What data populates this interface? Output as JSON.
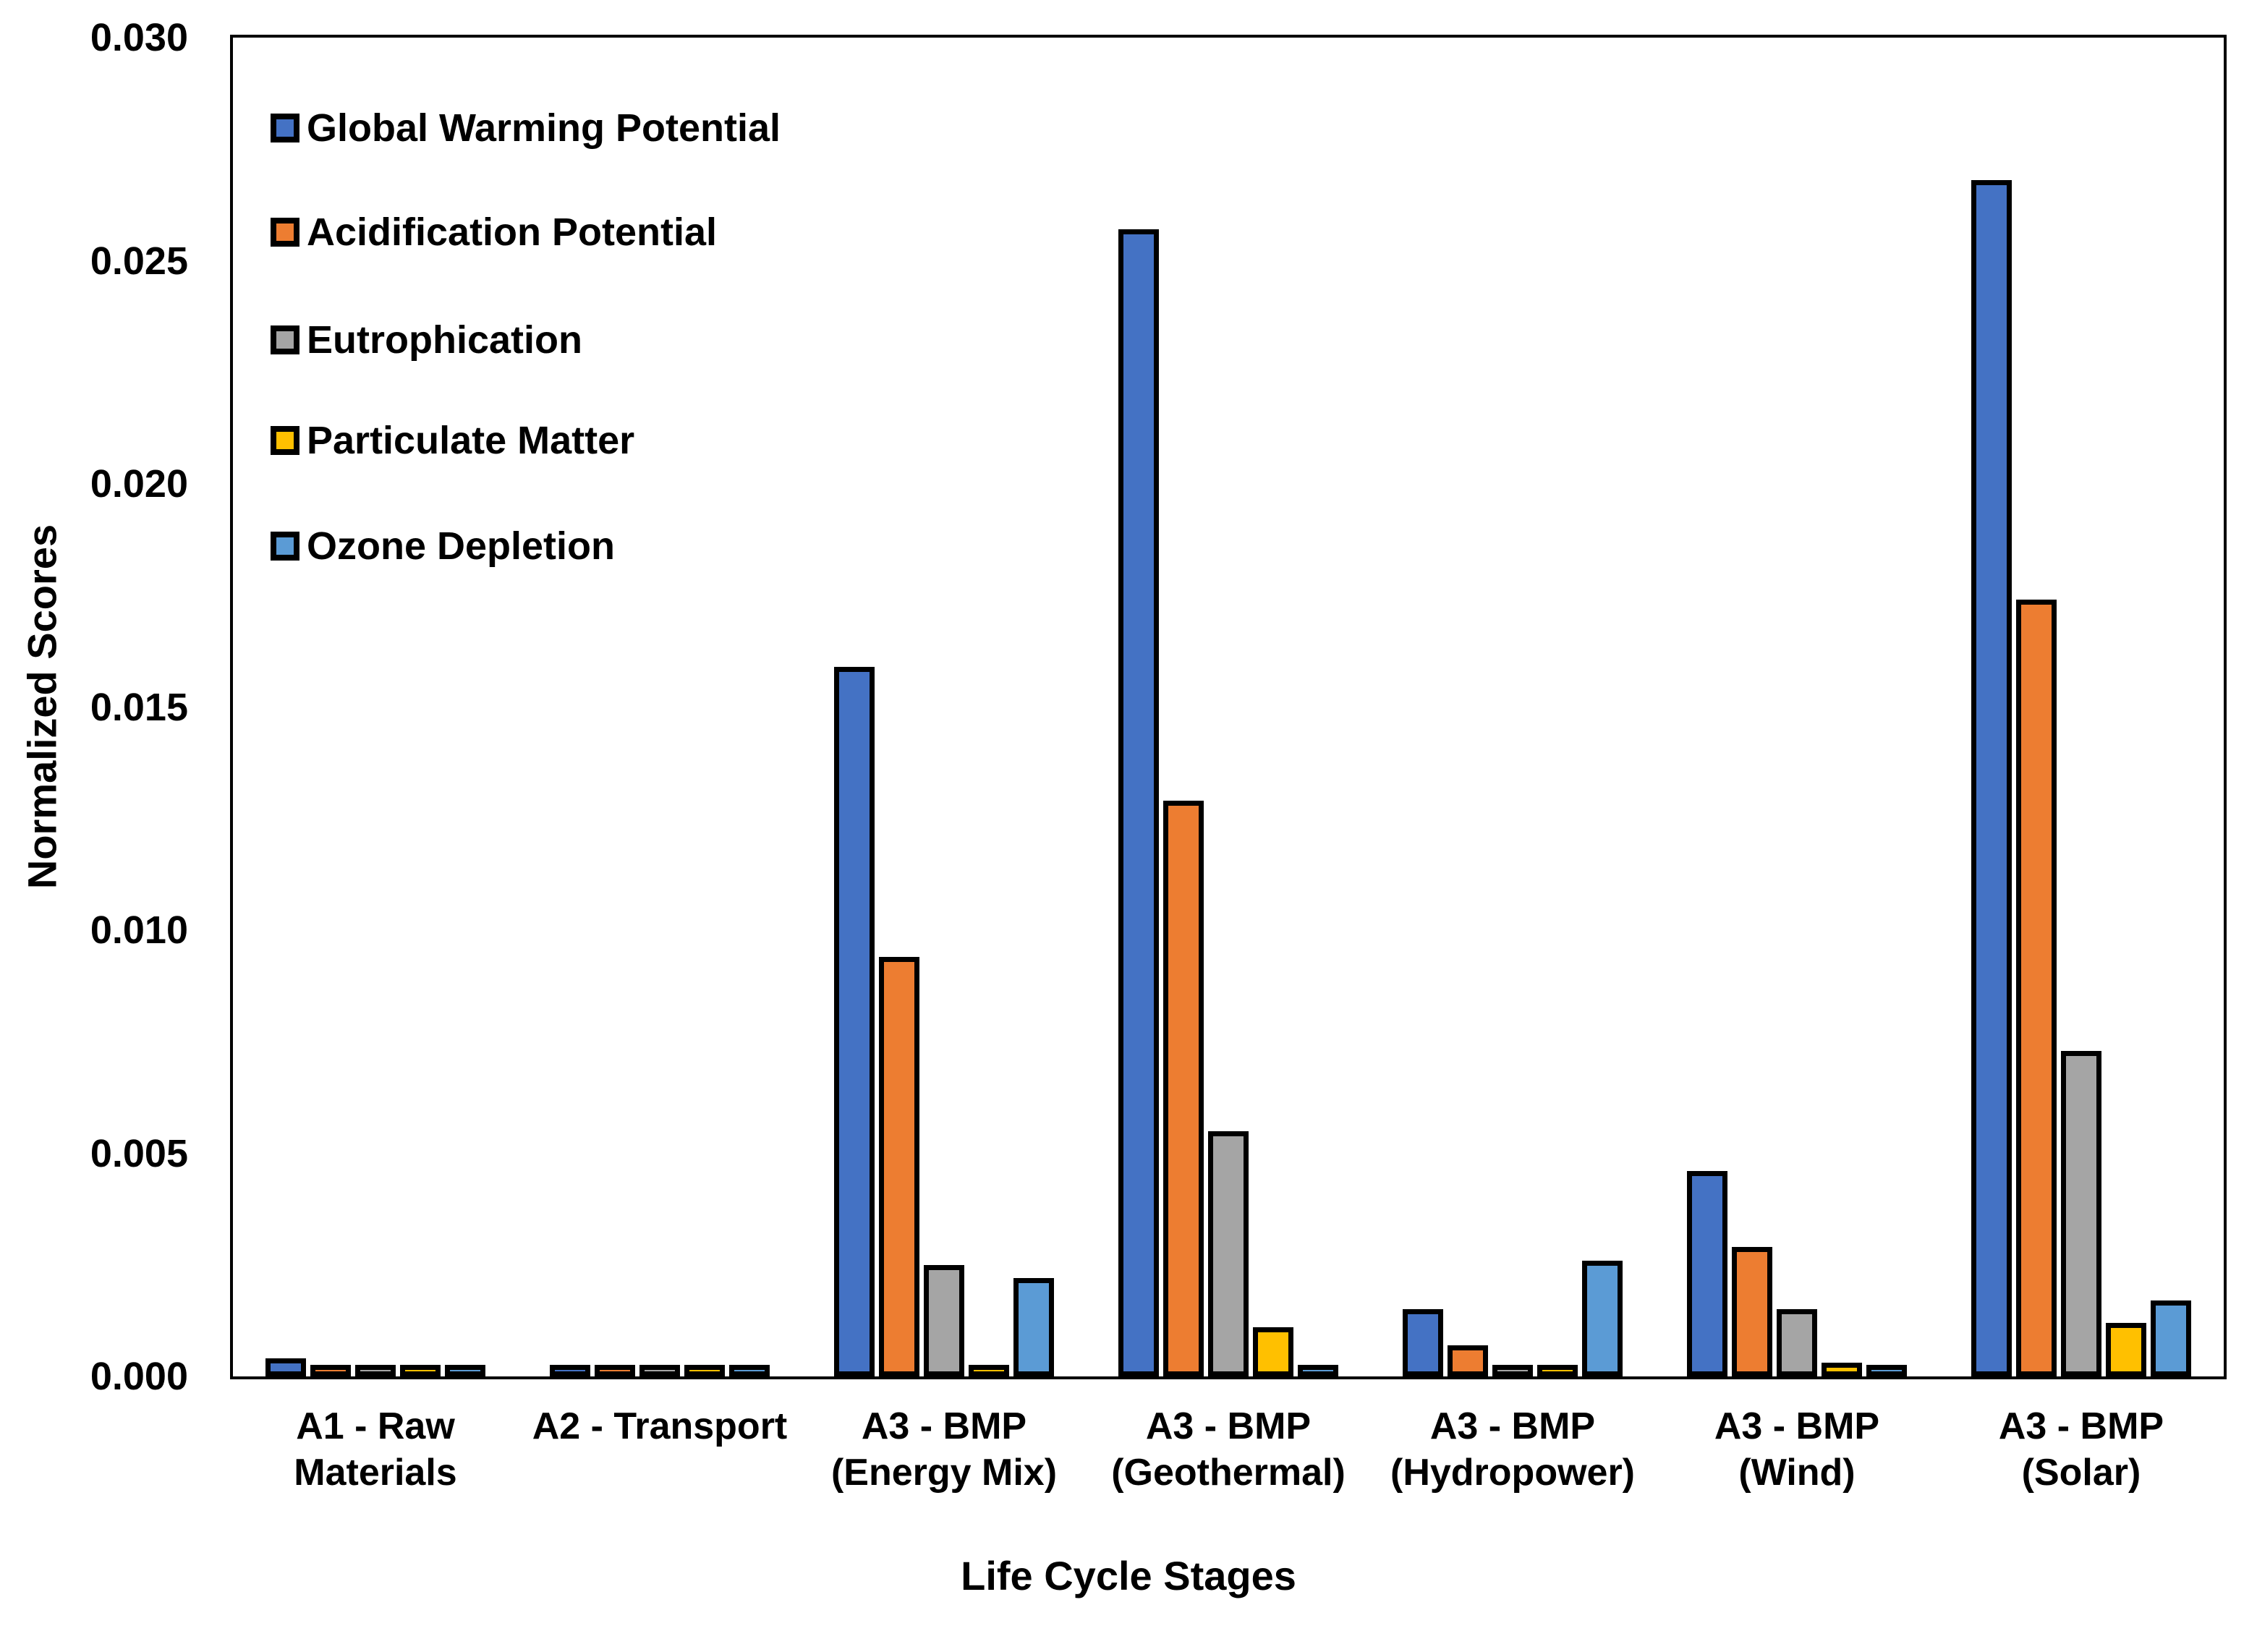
{
  "y_axis": {
    "title": "Normalized Scores",
    "tick_labels": [
      "0.000",
      "0.005",
      "0.010",
      "0.015",
      "0.020",
      "0.025",
      "0.030"
    ],
    "min": 0,
    "max": 0.03
  },
  "x_axis": {
    "title": "Life Cycle Stages"
  },
  "chart_data": {
    "type": "bar",
    "title": "",
    "xlabel": "Life Cycle Stages",
    "ylabel": "Normalized Scores",
    "ylim": [
      0,
      0.03
    ],
    "ytick_step": 0.005,
    "grid": false,
    "legend_position": "top-left-inside",
    "bar_outline_color": "#000000",
    "categories": [
      [
        "A1 - Raw",
        "Materials"
      ],
      [
        "A2 - Transport"
      ],
      [
        "A3 - BMP",
        "(Energy Mix)"
      ],
      [
        "A3 - BMP",
        "(Geothermal)"
      ],
      [
        "A3 - BMP",
        "(Hydropower)"
      ],
      [
        "A3 - BMP",
        "(Wind)"
      ],
      [
        "A3 - BMP",
        "(Solar)"
      ]
    ],
    "series": [
      {
        "name": "Global Warming Potential",
        "color": "#4472C4",
        "values": [
          0.0004,
          5e-05,
          0.0159,
          0.0257,
          0.0015,
          0.0046,
          0.0268
        ]
      },
      {
        "name": "Acidification Potential",
        "color": "#ED7D31",
        "values": [
          0.0001,
          5e-05,
          0.0094,
          0.0129,
          0.0007,
          0.0029,
          0.0174
        ]
      },
      {
        "name": "Eutrophication",
        "color": "#A5A5A5",
        "values": [
          5e-05,
          5e-05,
          0.0025,
          0.0055,
          0.0002,
          0.0015,
          0.0073
        ]
      },
      {
        "name": "Particulate Matter",
        "color": "#FFC000",
        "values": [
          5e-05,
          5e-05,
          5e-05,
          0.0011,
          5e-05,
          0.0003,
          0.0012
        ]
      },
      {
        "name": "Ozone Depletion",
        "color": "#5B9BD5",
        "values": [
          5e-05,
          5e-05,
          0.0022,
          0.0001,
          0.0026,
          5e-05,
          0.0017
        ]
      }
    ]
  }
}
